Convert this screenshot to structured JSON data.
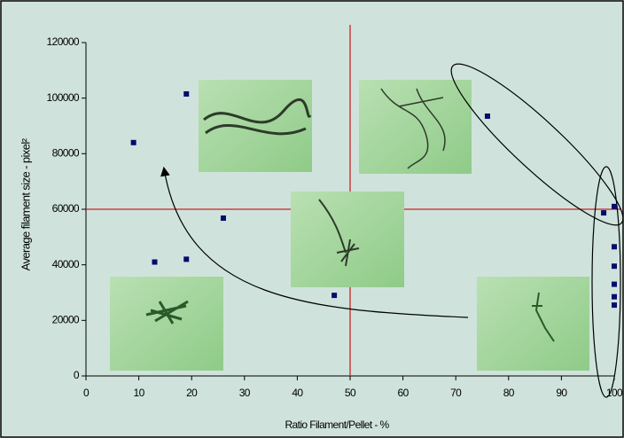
{
  "chart_data": {
    "type": "scatter",
    "x_label": "Ratio Filament/Pellet - %",
    "y_label": "Average filament size - pixel²",
    "x": [
      9,
      19,
      13,
      19,
      26,
      47,
      76,
      98,
      100,
      100,
      100,
      100,
      100,
      100
    ],
    "values": [
      84000,
      101500,
      41000,
      42000,
      56800,
      29000,
      93500,
      58700,
      61000,
      46500,
      39500,
      33000,
      28500,
      25500
    ],
    "color": "#0a0a6e",
    "xlim": [
      0,
      100
    ],
    "xticks": [
      0,
      10,
      20,
      30,
      40,
      50,
      60,
      70,
      80,
      90,
      100
    ],
    "ylim": [
      0,
      120000
    ],
    "yticks": [
      0,
      20000,
      40000,
      60000,
      80000,
      100000,
      120000
    ],
    "reference_x": 50,
    "reference_y": 60000,
    "reference_color": "#cc2222"
  }
}
